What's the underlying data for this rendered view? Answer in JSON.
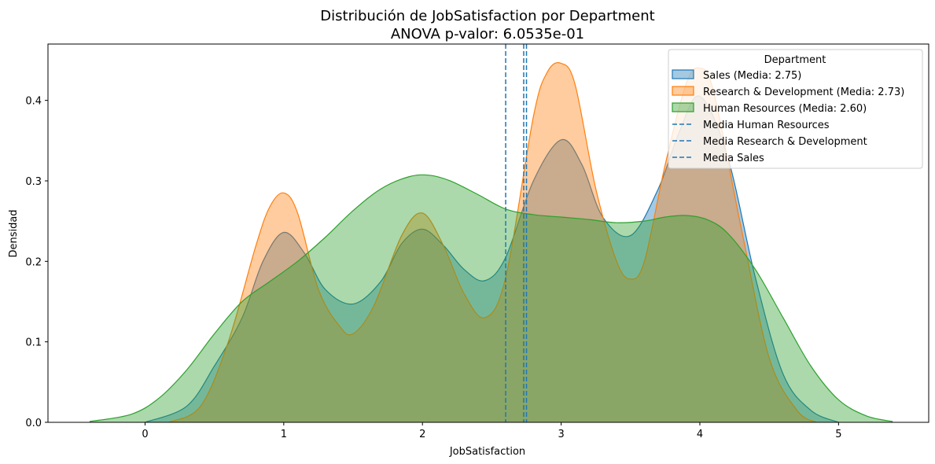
{
  "chart_data": {
    "type": "area",
    "title": "Distribución de JobSatisfaction por Department",
    "subtitle": "ANOVA p-valor: 6.0535e-01",
    "xlabel": "JobSatisfaction",
    "ylabel": "Densidad",
    "xlim": [
      -0.7,
      5.65
    ],
    "ylim": [
      0,
      0.47
    ],
    "xticks": [
      0,
      1,
      2,
      3,
      4,
      5
    ],
    "yticks": [
      0.0,
      0.1,
      0.2,
      0.3,
      0.4
    ],
    "ytick_labels": [
      "0.0",
      "0.1",
      "0.2",
      "0.3",
      "0.4"
    ],
    "grid": false,
    "legend_title": "Department",
    "legend_position": "top-right",
    "series": [
      {
        "name": "Sales (Media: 2.75)",
        "color": "#1f77b4",
        "x": [
          0.0,
          0.3,
          0.5,
          0.7,
          0.85,
          1.0,
          1.15,
          1.3,
          1.5,
          1.7,
          1.85,
          2.0,
          2.15,
          2.3,
          2.45,
          2.6,
          2.8,
          3.0,
          3.15,
          3.3,
          3.5,
          3.7,
          3.85,
          4.0,
          4.2,
          4.4,
          4.6,
          4.8,
          5.0
        ],
        "y": [
          0.0,
          0.02,
          0.07,
          0.13,
          0.2,
          0.236,
          0.21,
          0.165,
          0.147,
          0.175,
          0.222,
          0.24,
          0.22,
          0.19,
          0.176,
          0.205,
          0.3,
          0.351,
          0.32,
          0.255,
          0.232,
          0.29,
          0.36,
          0.405,
          0.33,
          0.18,
          0.06,
          0.015,
          0.0
        ]
      },
      {
        "name": "Research & Development (Media: 2.73)",
        "color": "#ff7f0e",
        "x": [
          0.17,
          0.4,
          0.6,
          0.8,
          0.9,
          1.0,
          1.1,
          1.25,
          1.4,
          1.5,
          1.65,
          1.85,
          2.0,
          2.15,
          2.3,
          2.45,
          2.6,
          2.8,
          2.9,
          3.0,
          3.1,
          3.25,
          3.4,
          3.5,
          3.6,
          3.75,
          3.9,
          4.0,
          4.1,
          4.3,
          4.5,
          4.7,
          4.84
        ],
        "y": [
          0.0,
          0.02,
          0.1,
          0.22,
          0.268,
          0.285,
          0.26,
          0.165,
          0.12,
          0.11,
          0.145,
          0.232,
          0.26,
          0.22,
          0.16,
          0.13,
          0.18,
          0.38,
          0.435,
          0.446,
          0.42,
          0.29,
          0.2,
          0.178,
          0.2,
          0.32,
          0.42,
          0.44,
          0.41,
          0.24,
          0.08,
          0.015,
          0.0
        ]
      },
      {
        "name": "Human Resources (Media: 2.60)",
        "color": "#2ca02c",
        "x": [
          -0.4,
          -0.1,
          0.1,
          0.3,
          0.5,
          0.7,
          0.9,
          1.1,
          1.3,
          1.5,
          1.7,
          1.9,
          2.05,
          2.2,
          2.4,
          2.6,
          2.8,
          3.0,
          3.2,
          3.4,
          3.6,
          3.75,
          3.9,
          4.05,
          4.2,
          4.4,
          4.6,
          4.8,
          5.0,
          5.2,
          5.39
        ],
        "y": [
          0.001,
          0.01,
          0.03,
          0.065,
          0.11,
          0.15,
          0.175,
          0.2,
          0.23,
          0.263,
          0.29,
          0.305,
          0.307,
          0.3,
          0.283,
          0.265,
          0.258,
          0.255,
          0.252,
          0.248,
          0.25,
          0.255,
          0.257,
          0.252,
          0.235,
          0.19,
          0.13,
          0.07,
          0.028,
          0.008,
          0.001
        ]
      }
    ],
    "mean_lines": [
      {
        "name": "Media Human Resources",
        "x": 2.6,
        "color": "#1f77b4",
        "style": "dashed"
      },
      {
        "name": "Media Research & Development",
        "x": 2.73,
        "color": "#1f77b4",
        "style": "dashed"
      },
      {
        "name": "Media Sales",
        "x": 2.75,
        "color": "#1f77b4",
        "style": "dashed"
      }
    ]
  }
}
